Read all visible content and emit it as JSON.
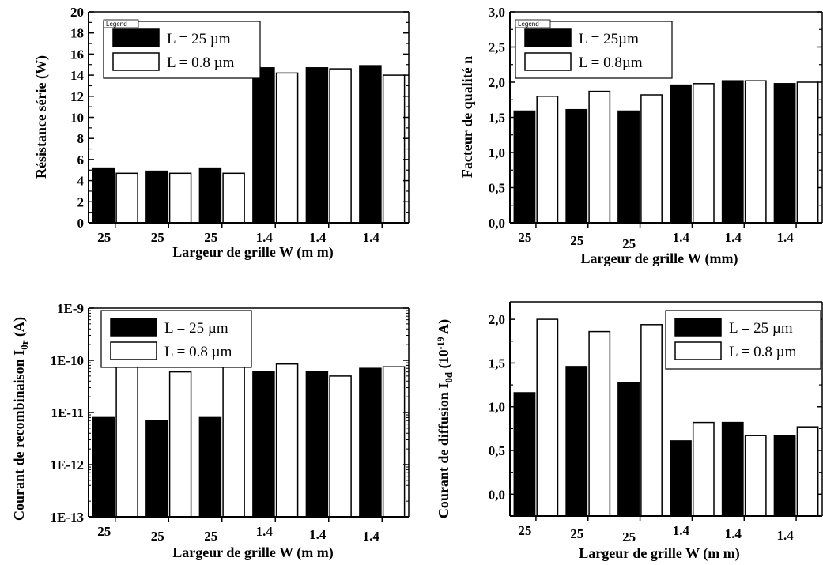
{
  "chart_data": [
    {
      "type": "bar",
      "categories": [
        "25",
        "25",
        "25",
        "1.4",
        "1.4",
        "1.4"
      ],
      "series": [
        {
          "name": "L = 25 µm",
          "values": [
            5.2,
            4.9,
            5.2,
            14.7,
            14.7,
            14.9
          ]
        },
        {
          "name": "L = 0.8 µm",
          "values": [
            4.7,
            4.7,
            4.7,
            14.2,
            14.6,
            14.0
          ]
        }
      ],
      "xlabel": "Largeur de grille W (m m)",
      "ylabel": "Résistance série (W)",
      "ylim": [
        0,
        20
      ],
      "yticks": [
        "0",
        "2",
        "4",
        "6",
        "8",
        "10",
        "12",
        "14",
        "16",
        "18",
        "20"
      ],
      "legend_title": "Legend",
      "legend_position": "top-left"
    },
    {
      "type": "bar",
      "categories": [
        "25",
        "25",
        "25",
        "1.4",
        "1.4",
        "1.4"
      ],
      "series": [
        {
          "name": "L = 25µm",
          "values": [
            1.59,
            1.61,
            1.59,
            1.96,
            2.02,
            1.98
          ]
        },
        {
          "name": "L = 0.8µm",
          "values": [
            1.8,
            1.87,
            1.82,
            1.98,
            2.02,
            2.0
          ]
        }
      ],
      "xlabel": "Largeur de grille W (mm)",
      "ylabel": "Facteur de qualité n",
      "ylim": [
        0,
        3.0
      ],
      "yticks": [
        "0,0",
        "0,5",
        "1,0",
        "1,5",
        "2,0",
        "2,5",
        "3,0"
      ],
      "legend_title": "Legend",
      "legend_position": "top-left"
    },
    {
      "type": "bar",
      "scale": "log",
      "categories": [
        "25",
        "25",
        "25",
        "1.4",
        "1.4",
        "1.4"
      ],
      "series": [
        {
          "name": "L = 25 µm",
          "values": [
            8e-12,
            7e-12,
            8e-12,
            6e-11,
            6e-11,
            7e-11
          ]
        },
        {
          "name": "L = 0.8 µm",
          "values": [
            8e-11,
            6e-11,
            8e-11,
            8.5e-11,
            5e-11,
            7.5e-11
          ]
        }
      ],
      "xlabel": "Largeur de grille W (m m)",
      "ylabel_main": "Courant de recombinaison I",
      "ylabel_sub": "0r",
      "ylabel_end": " (A)",
      "ylim": [
        1e-13,
        1e-09
      ],
      "yticks": [
        "1E-13",
        "1E-12",
        "1E-11",
        "1E-10",
        "1E-9"
      ],
      "legend_position": "top-left"
    },
    {
      "type": "bar",
      "categories": [
        "25",
        "25",
        "25",
        "1.4",
        "1.4",
        "1.4"
      ],
      "series": [
        {
          "name": "L = 25 µm",
          "values": [
            1.16,
            1.46,
            1.28,
            0.61,
            0.82,
            0.67
          ]
        },
        {
          "name": "L = 0.8 µm",
          "values": [
            2.0,
            1.86,
            1.94,
            0.82,
            0.67,
            0.77
          ]
        }
      ],
      "xlabel": "Largeur de grille W (m m)",
      "ylabel_main": "Courant de diffusion I",
      "ylabel_sub": "0d",
      "ylabel_mid": " (10",
      "ylabel_sup": "-19",
      "ylabel_end": " A)",
      "ylim": [
        -0.25,
        2.2
      ],
      "yticks": [
        "0,0",
        "0,5",
        "1,0",
        "1,5",
        "2,0"
      ],
      "legend_position": "top-right"
    }
  ],
  "colors": {
    "series1": "#000000",
    "series2": "#ffffff"
  }
}
